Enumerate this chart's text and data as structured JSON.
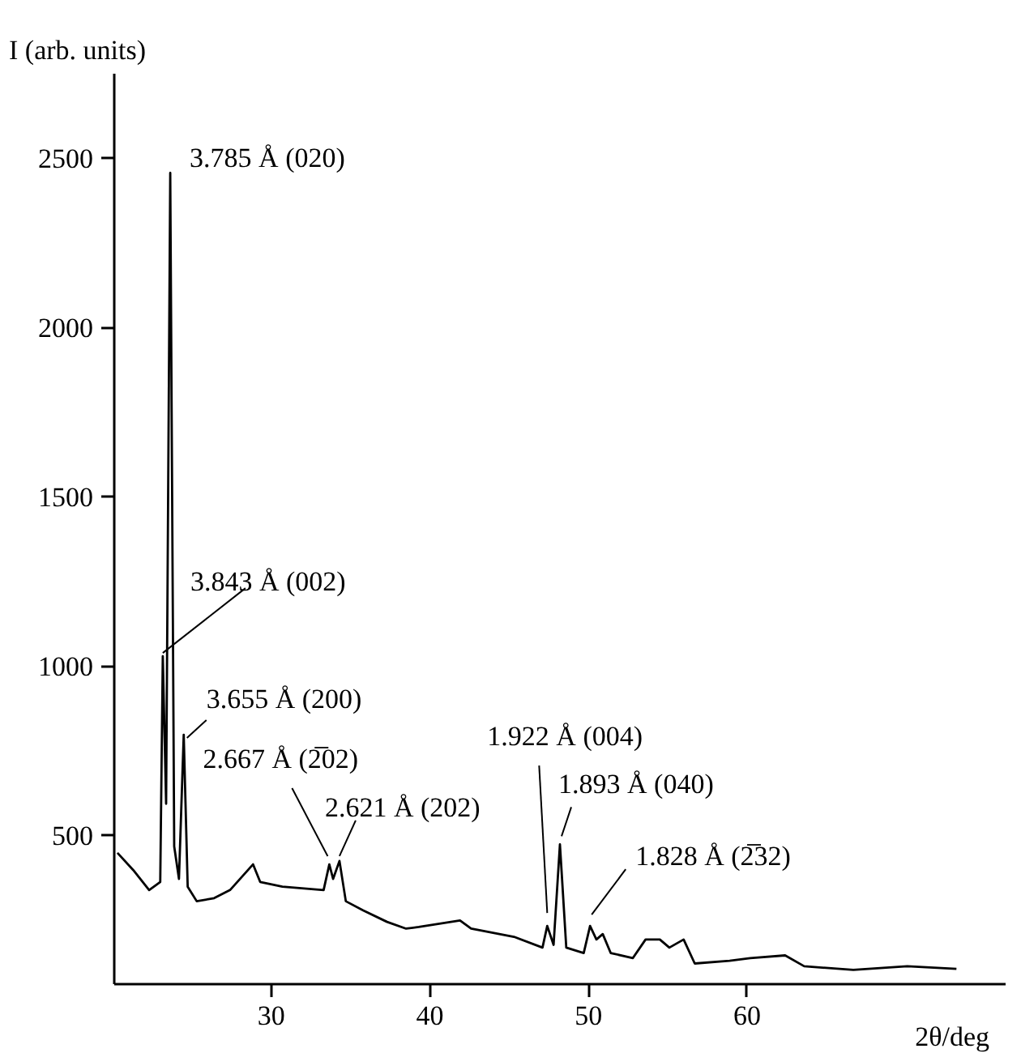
{
  "chart_data": {
    "type": "line",
    "xlabel": "2θ/deg",
    "ylabel": "I (arb. units)",
    "xlim": [
      20.1,
      76.3
    ],
    "ylim": [
      60,
      2750
    ],
    "xticks": [
      30,
      40,
      50,
      60
    ],
    "yticks": [
      500,
      1000,
      1500,
      2000,
      2500
    ],
    "grid": false,
    "marker": "none",
    "line_style": "solid",
    "series": [
      {
        "color": "#000000",
        "x": [
          20.3,
          21.3,
          22.3,
          23.0,
          23.16,
          23.37,
          23.63,
          23.88,
          24.18,
          24.48,
          24.73,
          25.3,
          26.4,
          27.4,
          28.85,
          29.3,
          30.7,
          33.3,
          33.66,
          33.9,
          34.3,
          34.7,
          35.8,
          37.3,
          38.5,
          39.3,
          41.9,
          42.6,
          45.3,
          47.1,
          47.4,
          47.8,
          48.2,
          48.6,
          49.7,
          50.1,
          50.5,
          50.9,
          51.4,
          52.8,
          53.6,
          54.5,
          55.1,
          56.0,
          56.7,
          58.9,
          60.2,
          62.4,
          63.6,
          66.7,
          70.1,
          73.2
        ],
        "values": [
          448,
          397,
          338,
          362,
          1029,
          593,
          2457,
          467,
          371,
          797,
          348,
          305,
          314,
          338,
          414,
          362,
          348,
          338,
          414,
          371,
          424,
          305,
          278,
          244,
          224,
          229,
          248,
          224,
          200,
          168,
          232,
          176,
          473,
          168,
          152,
          232,
          192,
          208,
          152,
          137,
          192,
          192,
          168,
          192,
          121,
          129,
          137,
          145,
          113,
          102,
          113,
          105
        ]
      }
    ],
    "annotations": [
      {
        "text": "3.785 Å (020)",
        "x": 23.63,
        "y": 2457
      },
      {
        "text": "3.843 Å (002)",
        "x": 23.16,
        "y": 1029
      },
      {
        "text": "3.655 Å (200)",
        "x": 24.48,
        "y": 797
      },
      {
        "text": "2.667 Å (2̅02)",
        "x": 33.66,
        "y": 414
      },
      {
        "text": "2.621 Å (202)",
        "x": 34.3,
        "y": 424
      },
      {
        "text": "1.922 Å (004)",
        "x": 47.4,
        "y": 232
      },
      {
        "text": "1.893 Å (040)",
        "x": 48.2,
        "y": 473
      },
      {
        "text": "1.828 Å (2̅32)",
        "x": 50.1,
        "y": 232
      }
    ]
  }
}
